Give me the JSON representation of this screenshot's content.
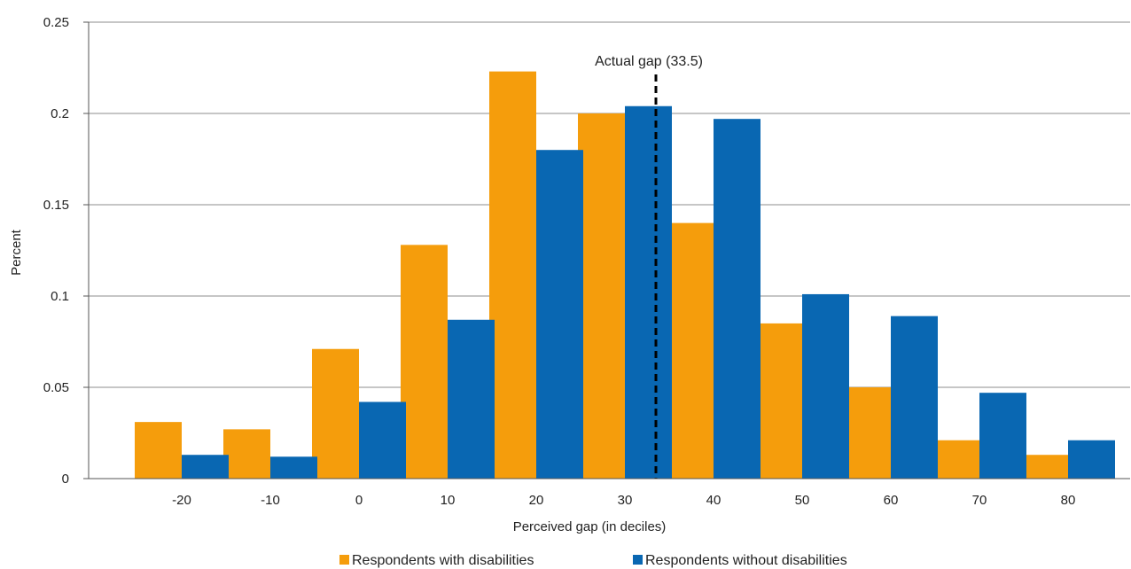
{
  "chart_data": {
    "type": "bar",
    "title": "",
    "xlabel": "Perceived gap (in deciles)",
    "ylabel": "Percent",
    "categories": [
      "-20",
      "-10",
      "0",
      "10",
      "20",
      "30",
      "40",
      "50",
      "60",
      "70",
      "80"
    ],
    "x_values": [
      -20,
      -10,
      0,
      10,
      20,
      30,
      40,
      50,
      60,
      70,
      80
    ],
    "ylim": [
      0,
      0.25
    ],
    "yticks": [
      0,
      0.05,
      0.1,
      0.15,
      0.2,
      0.25
    ],
    "ytick_labels": [
      "0",
      "0.05",
      "0.1",
      "0.15",
      "0.2",
      "0.25"
    ],
    "grid": "horizontal",
    "legend": "bottom",
    "series": [
      {
        "name": "Respondents with disabilities",
        "color": "#f59d0c",
        "values": [
          0.031,
          0.027,
          0.071,
          0.128,
          0.223,
          0.2,
          0.14,
          0.085,
          0.05,
          0.021,
          0.013
        ]
      },
      {
        "name": "Respondents without disabilities",
        "color": "#0967b2",
        "values": [
          0.013,
          0.012,
          0.042,
          0.087,
          0.18,
          0.204,
          0.197,
          0.101,
          0.089,
          0.047,
          0.021
        ]
      }
    ],
    "annotations": [
      {
        "type": "vline",
        "x": 33.5,
        "label": "Actual gap (33.5)",
        "style": "dashed",
        "color": "#000000"
      }
    ]
  }
}
